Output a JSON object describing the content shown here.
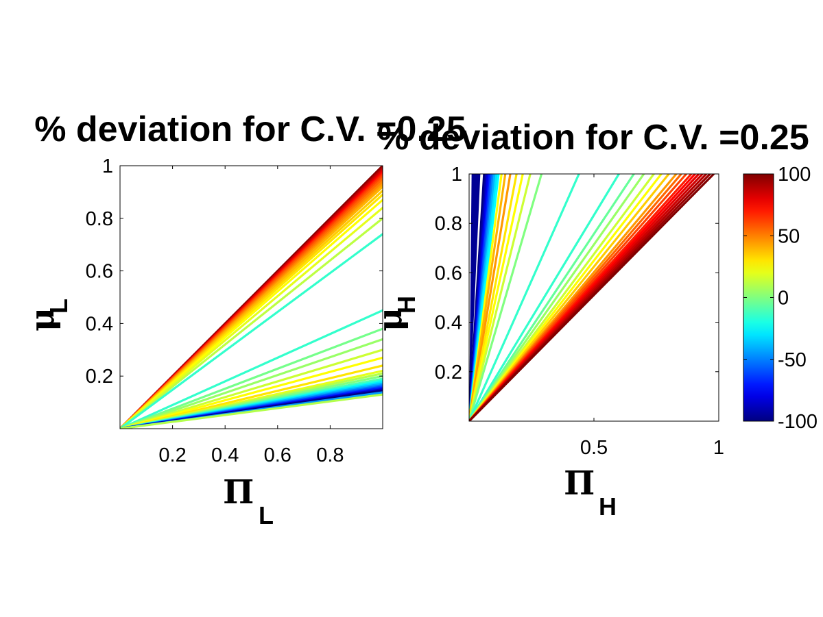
{
  "chart_data": [
    {
      "type": "contour",
      "title": "% deviation for C.V. =0.25",
      "xlabel": "Π",
      "xlabel_sub": "L",
      "ylabel": "μ",
      "ylabel_sub": "L",
      "xlim": [
        0,
        1
      ],
      "ylim": [
        0,
        1
      ],
      "xticks": [
        0.2,
        0.4,
        0.6,
        0.8
      ],
      "xtick_labels": [
        "0.2",
        "0.4",
        "0.6",
        "0.8"
      ],
      "yticks": [
        0.2,
        0.4,
        0.6,
        0.8,
        1
      ],
      "ytick_labels": [
        "0.2",
        "0.4",
        "0.6",
        "0.8",
        "1"
      ],
      "grid": false,
      "contours": [
        {
          "slope": 1.0,
          "level": 100
        },
        {
          "slope": 0.995,
          "level": 95
        },
        {
          "slope": 0.99,
          "level": 90
        },
        {
          "slope": 0.985,
          "level": 85
        },
        {
          "slope": 0.98,
          "level": 80
        },
        {
          "slope": 0.975,
          "level": 75
        },
        {
          "slope": 0.97,
          "level": 70
        },
        {
          "slope": 0.965,
          "level": 65
        },
        {
          "slope": 0.958,
          "level": 60
        },
        {
          "slope": 0.95,
          "level": 55
        },
        {
          "slope": 0.94,
          "level": 50
        },
        {
          "slope": 0.93,
          "level": 45
        },
        {
          "slope": 0.92,
          "level": 40
        },
        {
          "slope": 0.905,
          "level": 35
        },
        {
          "slope": 0.89,
          "level": 30
        },
        {
          "slope": 0.87,
          "level": 25
        },
        {
          "slope": 0.84,
          "level": 20
        },
        {
          "slope": 0.8,
          "level": 12
        },
        {
          "slope": 0.74,
          "level": -15
        },
        {
          "slope": 0.45,
          "level": -15
        },
        {
          "slope": 0.38,
          "level": -2
        },
        {
          "slope": 0.34,
          "level": 5
        },
        {
          "slope": 0.3,
          "level": 15
        },
        {
          "slope": 0.27,
          "level": 25
        },
        {
          "slope": 0.24,
          "level": 30
        },
        {
          "slope": 0.22,
          "level": 20
        },
        {
          "slope": 0.21,
          "level": 10
        },
        {
          "slope": 0.2,
          "level": 0
        },
        {
          "slope": 0.19,
          "level": -10
        },
        {
          "slope": 0.183,
          "level": -20
        },
        {
          "slope": 0.177,
          "level": -30
        },
        {
          "slope": 0.171,
          "level": -40
        },
        {
          "slope": 0.165,
          "level": -50
        },
        {
          "slope": 0.16,
          "level": -60
        },
        {
          "slope": 0.155,
          "level": -70
        },
        {
          "slope": 0.15,
          "level": -85
        },
        {
          "slope": 0.145,
          "level": -100
        },
        {
          "slope": 0.138,
          "level": -45
        },
        {
          "slope": 0.13,
          "level": 10
        }
      ]
    },
    {
      "type": "contour",
      "title": "% deviation for C.V. =0.25",
      "xlabel": "Π",
      "xlabel_sub": "H",
      "ylabel": "μ",
      "ylabel_sub": "H",
      "xlim": [
        0,
        1
      ],
      "ylim": [
        0,
        1
      ],
      "xticks": [
        0.5,
        1
      ],
      "xtick_labels": [
        "0.5",
        "1"
      ],
      "yticks": [
        0.2,
        0.4,
        0.6,
        0.8,
        1
      ],
      "ytick_labels": [
        "0.2",
        "0.4",
        "0.6",
        "0.8",
        "1"
      ],
      "grid": false,
      "blue_band_x_at_top": [
        0.01,
        0.045
      ],
      "contours": [
        {
          "x_at_top": 0.06,
          "level": -100
        },
        {
          "x_at_top": 0.068,
          "level": -90
        },
        {
          "x_at_top": 0.075,
          "level": -80
        },
        {
          "x_at_top": 0.082,
          "level": -70
        },
        {
          "x_at_top": 0.088,
          "level": -60
        },
        {
          "x_at_top": 0.095,
          "level": -50
        },
        {
          "x_at_top": 0.102,
          "level": -40
        },
        {
          "x_at_top": 0.11,
          "level": -30
        },
        {
          "x_at_top": 0.118,
          "level": -25
        },
        {
          "x_at_top": 0.13,
          "level": 25
        },
        {
          "x_at_top": 0.145,
          "level": 40
        },
        {
          "x_at_top": 0.165,
          "level": 45
        },
        {
          "x_at_top": 0.19,
          "level": 30
        },
        {
          "x_at_top": 0.215,
          "level": 25
        },
        {
          "x_at_top": 0.245,
          "level": 15
        },
        {
          "x_at_top": 0.29,
          "level": 0
        },
        {
          "x_at_top": 0.44,
          "level": -15
        },
        {
          "x_at_top": 0.6,
          "level": -15
        },
        {
          "x_at_top": 0.66,
          "level": -5
        },
        {
          "x_at_top": 0.7,
          "level": 5
        },
        {
          "x_at_top": 0.74,
          "level": 15
        },
        {
          "x_at_top": 0.77,
          "level": 25
        },
        {
          "x_at_top": 0.8,
          "level": 35
        },
        {
          "x_at_top": 0.83,
          "level": 45
        },
        {
          "x_at_top": 0.85,
          "level": 55
        },
        {
          "x_at_top": 0.87,
          "level": 62
        },
        {
          "x_at_top": 0.89,
          "level": 70
        },
        {
          "x_at_top": 0.905,
          "level": 75
        },
        {
          "x_at_top": 0.92,
          "level": 80
        },
        {
          "x_at_top": 0.935,
          "level": 85
        },
        {
          "x_at_top": 0.95,
          "level": 90
        },
        {
          "x_at_top": 0.965,
          "level": 95
        },
        {
          "x_at_top": 0.98,
          "level": 100
        }
      ]
    }
  ],
  "colorbar": {
    "colormap": "jet",
    "clim": [
      -100,
      100
    ],
    "ticks": [
      100,
      50,
      0,
      -50,
      -100
    ],
    "tick_labels": [
      "100",
      "50",
      "0",
      "-50",
      "-100"
    ]
  }
}
